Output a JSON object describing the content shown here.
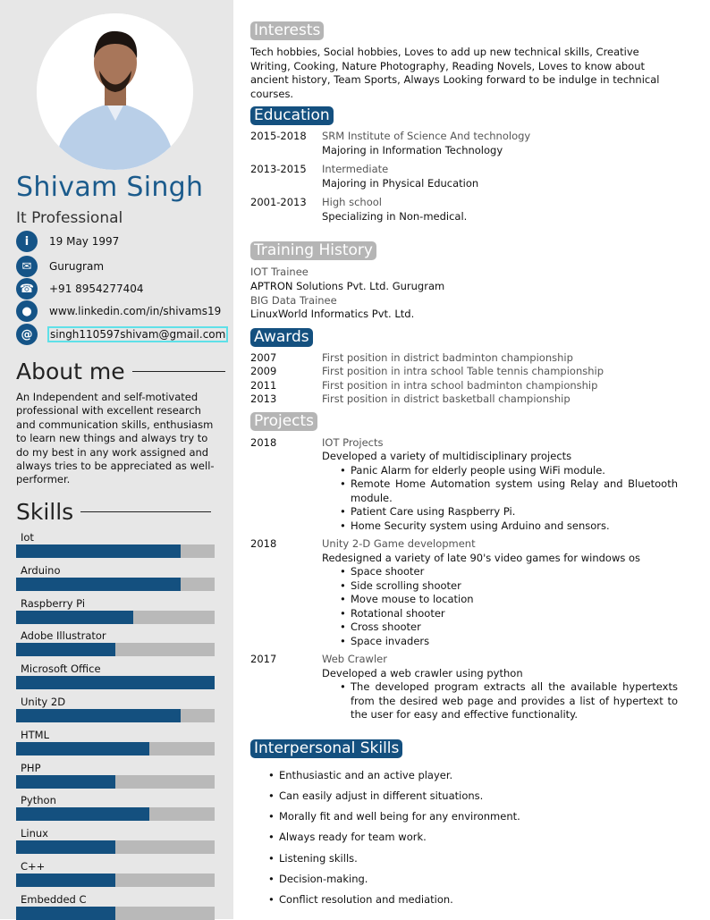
{
  "colors": {
    "accent": "#14507f",
    "heading_gray": "#b5b5b5",
    "sidebar_bg": "#e7e7e7"
  },
  "profile": {
    "name": "Shivam Singh",
    "title": "It Professional",
    "contacts": [
      {
        "icon": "info-icon",
        "glyph": "i",
        "text": "19 May 1997"
      },
      {
        "icon": "envelope-icon",
        "glyph": "✉",
        "text": "Gurugram"
      },
      {
        "icon": "phone-icon",
        "glyph": "☎",
        "text": "+91 8954277404"
      },
      {
        "icon": "globe-icon",
        "glyph": "●",
        "text": "www.linkedin.com/in/shivams19"
      },
      {
        "icon": "at-icon",
        "glyph": "@",
        "text": "singh110597shivam@gmail.com"
      }
    ]
  },
  "about": {
    "heading": "About me",
    "text": "An Independent and self-motivated professional with excellent research and communication skills, enthusiasm to learn new things and always try to do my best in any work assigned and always tries to be appreciated as well-performer."
  },
  "skills": {
    "heading": "Skills",
    "items": [
      {
        "name": "Iot",
        "level": 0.83
      },
      {
        "name": "Arduino",
        "level": 0.83
      },
      {
        "name": "Raspberry Pi",
        "level": 0.59
      },
      {
        "name": "Adobe Illustrator",
        "level": 0.5
      },
      {
        "name": "Microsoft Office",
        "level": 1.0
      },
      {
        "name": "Unity 2D",
        "level": 0.83
      },
      {
        "name": "HTML",
        "level": 0.67
      },
      {
        "name": "PHP",
        "level": 0.5
      },
      {
        "name": "Python",
        "level": 0.67
      },
      {
        "name": "Linux",
        "level": 0.5
      },
      {
        "name": "C++",
        "level": 0.5
      },
      {
        "name": "Embedded C",
        "level": 0.5
      }
    ]
  },
  "interests": {
    "heading": "Interests",
    "text": "Tech hobbies, Social hobbies, Loves to add up new technical skills, Creative Writing, Cooking, Nature Photography, Reading Novels, Loves to know about ancient history, Team Sports, Always Looking forward to be indulge in technical courses."
  },
  "education": {
    "heading": "Education",
    "items": [
      {
        "years": "2015-2018",
        "school": "SRM Institute of Science And technology",
        "detail": "Majoring in Information Technology"
      },
      {
        "years": "2013-2015",
        "school": "Intermediate",
        "detail": "Majoring in Physical Education"
      },
      {
        "years": "2001-2013",
        "school": "High school",
        "detail": "Specializing in Non-medical."
      }
    ]
  },
  "training": {
    "heading": "Training History",
    "items": [
      {
        "role": "IOT Trainee",
        "org": "APTRON Solutions Pvt. Ltd. Gurugram"
      },
      {
        "role": "BIG Data Trainee",
        "org": "LinuxWorld Informatics Pvt. Ltd."
      }
    ]
  },
  "awards": {
    "heading": "Awards",
    "items": [
      {
        "year": "2007",
        "text": "First position in district badminton championship"
      },
      {
        "year": "2009",
        "text": "First position in intra school Table tennis championship"
      },
      {
        "year": "2011",
        "text": "First position in intra school badminton championship"
      },
      {
        "year": "2013",
        "text": "First position in district basketball championship"
      }
    ]
  },
  "projects": {
    "heading": "Projects",
    "items": [
      {
        "year": "2018",
        "title": "IOT Projects",
        "desc": "Developed a variety of multidisciplinary projects",
        "bullets": [
          "Panic Alarm for elderly people using WiFi module.",
          "Remote Home Automation system using Relay and Bluetooth module.",
          "Patient Care using Raspberry Pi.",
          "Home Security system using Arduino and sensors."
        ]
      },
      {
        "year": "2018",
        "title": "Unity 2-D Game development",
        "desc": "Redesigned a variety of late 90's video games for windows os",
        "bullets": [
          "Space shooter",
          "Side scrolling shooter",
          "Move mouse to location",
          "Rotational shooter",
          "Cross shooter",
          "Space invaders"
        ]
      },
      {
        "year": "2017",
        "title": "Web Crawler",
        "desc": "Developed a web crawler using python",
        "bullets": [
          "The developed program extracts all the available hypertexts from the desired web page and provides a list of hypertext to the user for easy and effective functionality."
        ]
      }
    ]
  },
  "interpersonal": {
    "heading": "Interpersonal Skills",
    "items": [
      "Enthusiastic and an active player.",
      "Can easily adjust in different situations.",
      "Morally fit and well being for any environment.",
      "Always ready for team work.",
      "Listening skills.",
      "Decision-making.",
      "Conflict resolution and mediation."
    ]
  }
}
